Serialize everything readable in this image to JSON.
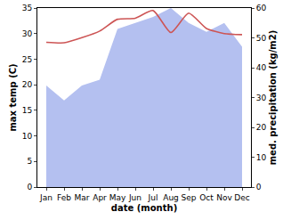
{
  "chart_data": {
    "type": "line",
    "xlabel": "date (month)",
    "ylabel": "max temp (C)",
    "y2label": "med. precipitation (kg/m2)",
    "categories": [
      "Jan",
      "Feb",
      "Mar",
      "Apr",
      "May",
      "Jun",
      "Jul",
      "Aug",
      "Sep",
      "Oct",
      "Nov",
      "Dec"
    ],
    "ylim": [
      0,
      35
    ],
    "yticks": [
      0,
      5,
      10,
      15,
      20,
      25,
      30,
      35
    ],
    "y2lim": [
      0,
      60
    ],
    "y2ticks": [
      0,
      10,
      20,
      30,
      40,
      50,
      60
    ],
    "grid": false,
    "series": [
      {
        "name": "med. precipitation",
        "type": "area",
        "axis": "y2",
        "color": "#b4c0f0",
        "values": [
          34,
          29,
          34,
          36,
          53,
          55,
          57,
          60,
          55,
          52,
          55,
          47
        ]
      },
      {
        "name": "max temp",
        "type": "line",
        "color": "#cd5555",
        "values": [
          28.3,
          28.2,
          29.2,
          30.5,
          32.8,
          33,
          34.5,
          30.2,
          34,
          31,
          30,
          29.8
        ]
      }
    ]
  }
}
